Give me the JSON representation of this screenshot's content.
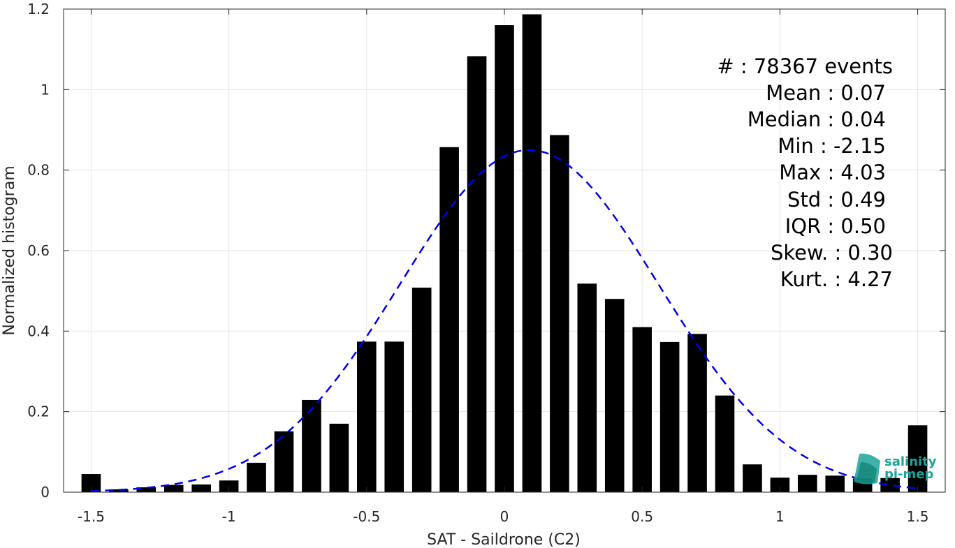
{
  "chart_data": {
    "type": "bar",
    "xlabel": "SAT - Saildrone (C2)",
    "ylabel": "Normalized histogram",
    "xlim": [
      -1.6,
      1.6
    ],
    "ylim": [
      0,
      1.2
    ],
    "grid": true,
    "x_ticks": [
      -1.5,
      -1,
      -0.5,
      0,
      0.5,
      1,
      1.5
    ],
    "x_tick_labels": [
      "-1.5",
      "-1",
      "-0.5",
      "0",
      "0.5",
      "1",
      "1.5"
    ],
    "y_ticks": [
      0,
      0.2,
      0.4,
      0.6,
      0.8,
      1,
      1.2
    ],
    "y_tick_labels": [
      "0",
      "0.2",
      "0.4",
      "0.6",
      "0.8",
      "1",
      "1.2"
    ],
    "bar_color": "#000000",
    "fit_color": "#0000ee",
    "bin_width": 0.1,
    "bar_width_fraction": 0.7,
    "bars": {
      "x": [
        -1.5,
        -1.4,
        -1.3,
        -1.2,
        -1.1,
        -1.0,
        -0.9,
        -0.8,
        -0.7,
        -0.6,
        -0.5,
        -0.4,
        -0.3,
        -0.2,
        -0.1,
        0.0,
        0.1,
        0.2,
        0.3,
        0.4,
        0.5,
        0.6,
        0.7,
        0.8,
        0.9,
        1.0,
        1.1,
        1.2,
        1.3,
        1.4,
        1.5
      ],
      "values": [
        0.045,
        0.007,
        0.012,
        0.018,
        0.019,
        0.029,
        0.073,
        0.151,
        0.229,
        0.17,
        0.374,
        0.374,
        0.508,
        0.857,
        1.083,
        1.16,
        1.187,
        0.887,
        0.518,
        0.48,
        0.41,
        0.373,
        0.393,
        0.24,
        0.069,
        0.036,
        0.043,
        0.041,
        0.034,
        0.035,
        0.166
      ]
    },
    "fit_curve": {
      "type": "gaussian",
      "mean": 0.09,
      "std": 0.47,
      "peak": 0.85,
      "x_range": [
        -1.5,
        1.5
      ]
    }
  },
  "stats": [
    {
      "text": "#  : 78367 events"
    },
    {
      "text": "Mean : 0.07"
    },
    {
      "text": "Median : 0.04"
    },
    {
      "text": "Min : -2.15"
    },
    {
      "text": "Max : 4.03"
    },
    {
      "text": "Std : 0.49"
    },
    {
      "text": "IQR : 0.50"
    },
    {
      "text": "Skew. : 0.30"
    },
    {
      "text": "Kurt. : 4.27"
    }
  ],
  "logo": {
    "line1": "salinity",
    "line2": "pi-mep",
    "color": "#1aa59a"
  }
}
